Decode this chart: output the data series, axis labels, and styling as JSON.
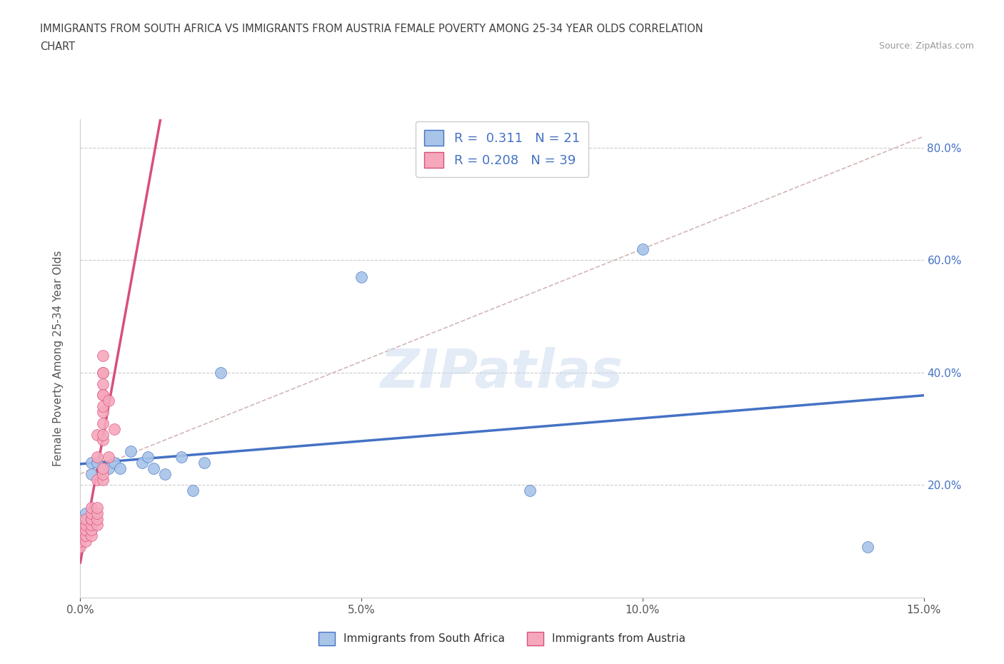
{
  "title_line1": "IMMIGRANTS FROM SOUTH AFRICA VS IMMIGRANTS FROM AUSTRIA FEMALE POVERTY AMONG 25-34 YEAR OLDS CORRELATION",
  "title_line2": "CHART",
  "source": "Source: ZipAtlas.com",
  "ylabel": "Female Poverty Among 25-34 Year Olds",
  "xlim": [
    0.0,
    0.15
  ],
  "ylim": [
    0.0,
    0.85
  ],
  "yticks": [
    0.2,
    0.4,
    0.6,
    0.8
  ],
  "ytick_labels": [
    "20.0%",
    "40.0%",
    "60.0%",
    "80.0%"
  ],
  "xticks": [
    0.0,
    0.05,
    0.1,
    0.15
  ],
  "xtick_labels": [
    "0.0%",
    "5.0%",
    "10.0%",
    "15.0%"
  ],
  "watermark": "ZIPatlas",
  "R_south_africa": 0.311,
  "N_south_africa": 21,
  "R_austria": 0.208,
  "N_austria": 39,
  "color_south_africa": "#a8c4e8",
  "color_austria": "#f5a8bc",
  "trendline_color_south_africa": "#4472c4",
  "trendline_color_austria": "#d94f7c",
  "south_africa_x": [
    0.001,
    0.001,
    0.002,
    0.002,
    0.003,
    0.005,
    0.006,
    0.007,
    0.009,
    0.011,
    0.012,
    0.013,
    0.015,
    0.018,
    0.02,
    0.022,
    0.025,
    0.05,
    0.08,
    0.1,
    0.14
  ],
  "south_africa_y": [
    0.13,
    0.15,
    0.22,
    0.24,
    0.24,
    0.23,
    0.24,
    0.23,
    0.26,
    0.24,
    0.25,
    0.23,
    0.22,
    0.25,
    0.19,
    0.24,
    0.4,
    0.57,
    0.19,
    0.62,
    0.09
  ],
  "austria_x": [
    0.0,
    0.0,
    0.0,
    0.001,
    0.001,
    0.001,
    0.001,
    0.001,
    0.002,
    0.002,
    0.002,
    0.002,
    0.002,
    0.002,
    0.002,
    0.003,
    0.003,
    0.003,
    0.003,
    0.003,
    0.003,
    0.003,
    0.004,
    0.004,
    0.004,
    0.004,
    0.004,
    0.004,
    0.004,
    0.004,
    0.004,
    0.004,
    0.004,
    0.004,
    0.004,
    0.004,
    0.005,
    0.005,
    0.006
  ],
  "austria_y": [
    0.09,
    0.1,
    0.12,
    0.1,
    0.11,
    0.12,
    0.13,
    0.14,
    0.11,
    0.12,
    0.13,
    0.14,
    0.14,
    0.15,
    0.16,
    0.13,
    0.14,
    0.15,
    0.16,
    0.21,
    0.25,
    0.29,
    0.21,
    0.22,
    0.23,
    0.28,
    0.29,
    0.31,
    0.33,
    0.34,
    0.36,
    0.38,
    0.4,
    0.36,
    0.4,
    0.43,
    0.25,
    0.35,
    0.3
  ],
  "legend_label_sa": "Immigrants from South Africa",
  "legend_label_au": "Immigrants from Austria",
  "background_color": "#ffffff",
  "grid_color": "#cccccc",
  "title_color": "#404040",
  "axis_label_color": "#555555",
  "tick_color": "#4472c4",
  "dashed_line_color": "#ccaaaa",
  "dashed_line_intercept": 0.22,
  "dashed_line_slope": 4.0
}
